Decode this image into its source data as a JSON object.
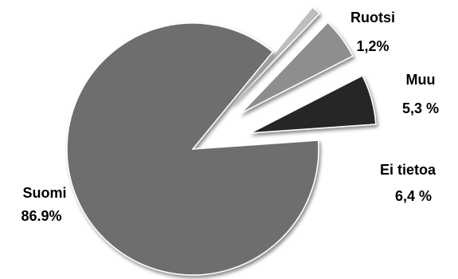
{
  "chart_data": {
    "type": "pie",
    "title": "",
    "slices": [
      {
        "name": "Suomi",
        "value": 86.9,
        "label_value": "86.9%",
        "color": "#6e6e6e"
      },
      {
        "name": "Ruotsi",
        "value": 1.2,
        "label_value": "1,2%",
        "color": "#bdbdbd"
      },
      {
        "name": "Muu",
        "value": 5.3,
        "label_value": "5,3 %",
        "color": "#8e8e8e"
      },
      {
        "name": "Ei tietoa",
        "value": 6.4,
        "label_value": "6,4 %",
        "color": "#262626"
      }
    ]
  }
}
